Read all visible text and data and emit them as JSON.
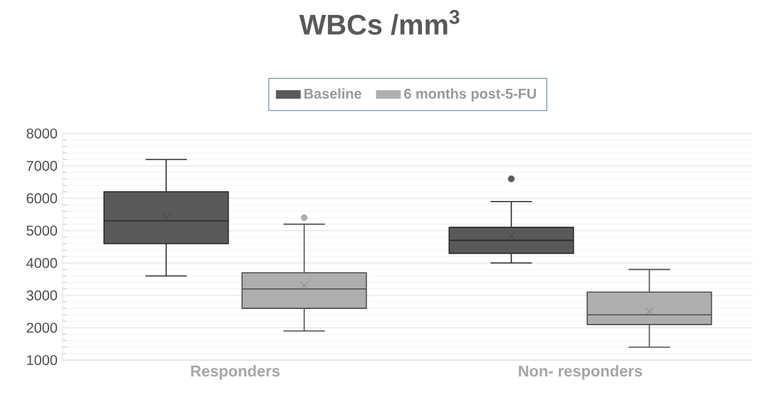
{
  "chart_data": {
    "type": "box",
    "title": "WBCs /mm$^{3}$",
    "categories": [
      "Responders",
      "Non- responders"
    ],
    "series": [
      {
        "name": "Baseline",
        "color": "#595959",
        "boxes": [
          {
            "low": 3600,
            "q1": 4600,
            "median": 5300,
            "q3": 6200,
            "high": 7200,
            "mean": 5400
          },
          {
            "low": 4000,
            "q1": 4300,
            "median": 4700,
            "q3": 5100,
            "high": 5900,
            "mean": 4850,
            "outliers": [
              6600
            ]
          }
        ]
      },
      {
        "name": "6 months post-5-FU",
        "color": "#aeaeae",
        "boxes": [
          {
            "low": 1900,
            "q1": 2600,
            "median": 3200,
            "q3": 3700,
            "high": 5200,
            "mean": 3300,
            "outliers": [
              5400
            ]
          },
          {
            "low": 1400,
            "q1": 2100,
            "median": 2400,
            "q3": 3100,
            "high": 3800,
            "mean": 2500
          }
        ]
      }
    ],
    "ylim": [
      1000,
      8000
    ],
    "yticks": [
      1000,
      2000,
      3000,
      4000,
      5000,
      6000,
      7000,
      8000
    ],
    "grid": "y",
    "legend": "top"
  }
}
